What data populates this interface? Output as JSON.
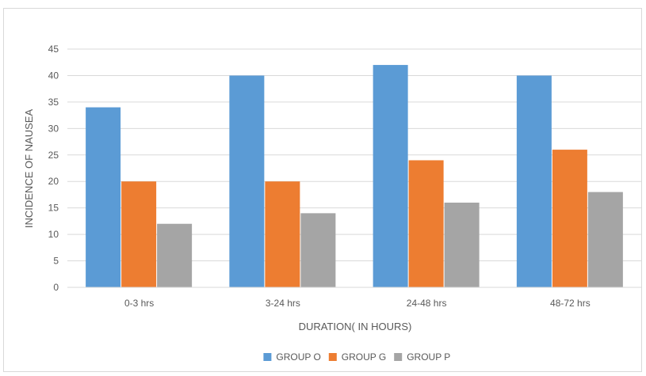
{
  "chart_data": {
    "type": "bar",
    "title": "",
    "xlabel": "DURATION( IN HOURS)",
    "ylabel": "INCIDENCE OF NAUSEA",
    "ylim": [
      0,
      45
    ],
    "yticks": [
      0,
      5,
      10,
      15,
      20,
      25,
      30,
      35,
      40,
      45
    ],
    "categories": [
      "0-3 hrs",
      "3-24  hrs",
      "24-48 hrs",
      "48-72 hrs"
    ],
    "series": [
      {
        "name": "GROUP O",
        "color": "#5B9BD5",
        "values": [
          34,
          40,
          42,
          40
        ]
      },
      {
        "name": "GROUP G",
        "color": "#ED7D31",
        "values": [
          20,
          20,
          24,
          26
        ]
      },
      {
        "name": "GROUP P",
        "color": "#A5A5A5",
        "values": [
          12,
          14,
          16,
          18
        ]
      }
    ],
    "grid": true,
    "legend_position": "bottom"
  }
}
